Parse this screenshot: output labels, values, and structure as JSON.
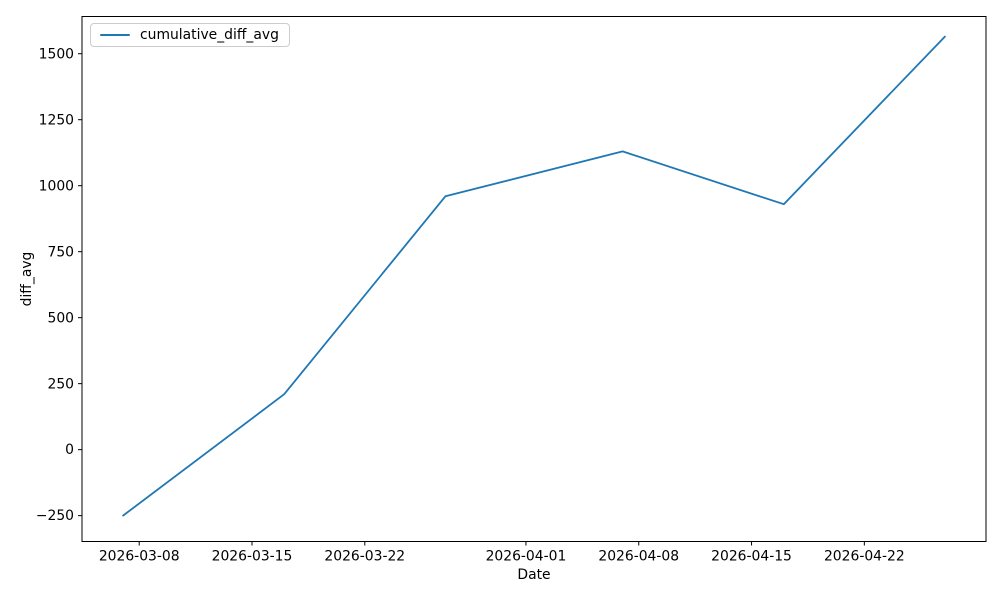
{
  "chart_data": {
    "type": "line",
    "title": "",
    "xlabel": "Date",
    "ylabel": "diff_avg",
    "grid": false,
    "legend_position": "upper left",
    "accent_color": "#1f77b4",
    "series": [
      {
        "name": "cumulative_diff_avg",
        "color": "#1f77b4",
        "x": [
          "2026-03-07",
          "2026-03-17",
          "2026-03-27",
          "2026-04-07",
          "2026-04-17",
          "2026-04-27"
        ],
        "y": [
          -250,
          210,
          960,
          1130,
          930,
          1565
        ]
      }
    ],
    "x_ticks": [
      "2026-03-08",
      "2026-03-15",
      "2026-03-22",
      "2026-04-01",
      "2026-04-08",
      "2026-04-15",
      "2026-04-22"
    ],
    "y_ticks": [
      -250,
      0,
      250,
      500,
      750,
      1000,
      1250,
      1500
    ],
    "x_margin": 0.05,
    "ylim": [
      -348,
      1641
    ]
  }
}
